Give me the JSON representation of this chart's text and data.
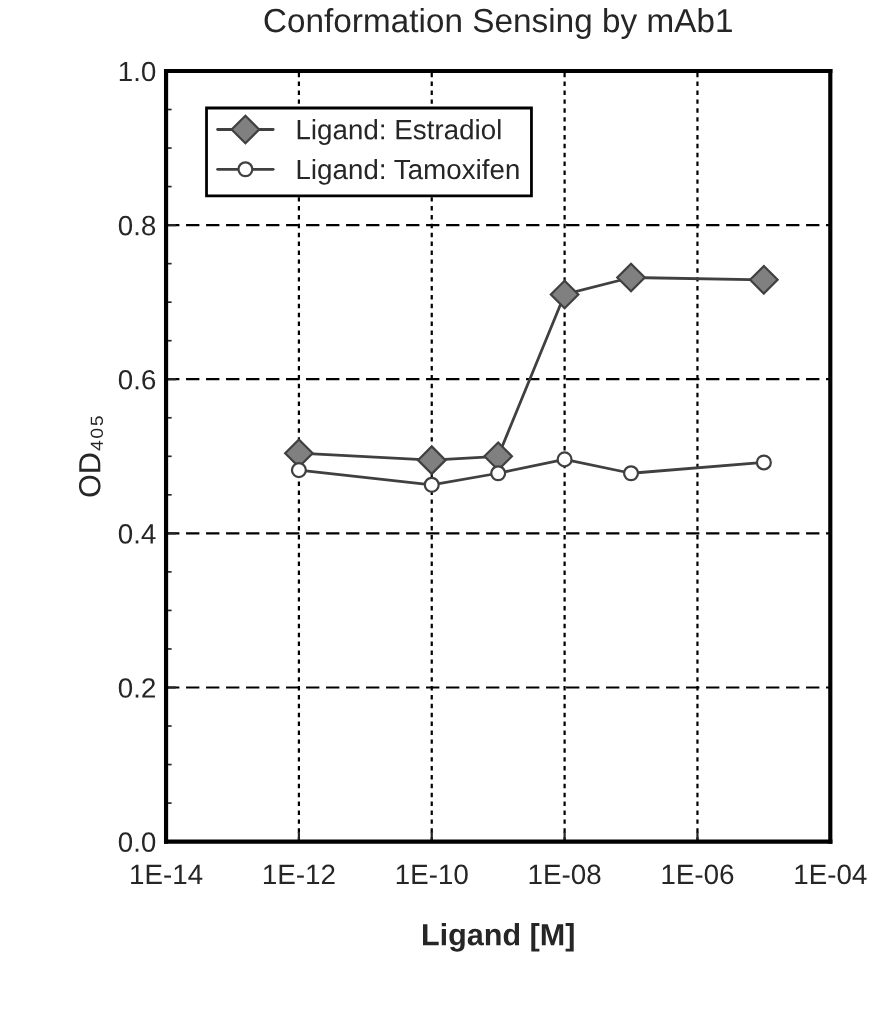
{
  "chart_data": {
    "type": "line",
    "title": "Conformation Sensing by mAb1",
    "xlabel": "Ligand [M]",
    "ylabel": "OD₄₀₅",
    "log": "x",
    "xlim": [
      1e-14,
      0.0001
    ],
    "xticks": [
      {
        "value": 1e-14,
        "label": "1E-14"
      },
      {
        "value": 1e-12,
        "label": "1E-12"
      },
      {
        "value": 1e-10,
        "label": "1E-10"
      },
      {
        "value": 1e-08,
        "label": "1E-08"
      },
      {
        "value": 1e-06,
        "label": "1E-06"
      },
      {
        "value": 0.0001,
        "label": "1E-04"
      }
    ],
    "ylim": [
      0,
      1.0
    ],
    "yticks": [
      {
        "value": 0,
        "label": "0.0"
      },
      {
        "value": 0.2,
        "label": "0.2"
      },
      {
        "value": 0.4,
        "label": "0.4"
      },
      {
        "value": 0.6,
        "label": "0.6"
      },
      {
        "value": 0.8,
        "label": "0.8"
      },
      {
        "value": 1.0,
        "label": "1.0"
      }
    ],
    "grid": true,
    "legend": "top left",
    "line_style": "solid",
    "x": [
      1e-12,
      1e-10,
      1e-09,
      1e-08,
      1e-07,
      1e-05
    ],
    "series": [
      {
        "name": "Ligand: Estradiol",
        "color": "#808080",
        "marker": "diamond",
        "values": [
          0.504,
          0.495,
          0.5,
          0.71,
          0.732,
          0.729
        ]
      },
      {
        "name": "Ligand: Tamoxifen",
        "color": "#ffffff",
        "marker": "circle",
        "values": [
          0.482,
          0.463,
          0.478,
          0.496,
          0.478,
          0.492
        ]
      }
    ]
  }
}
